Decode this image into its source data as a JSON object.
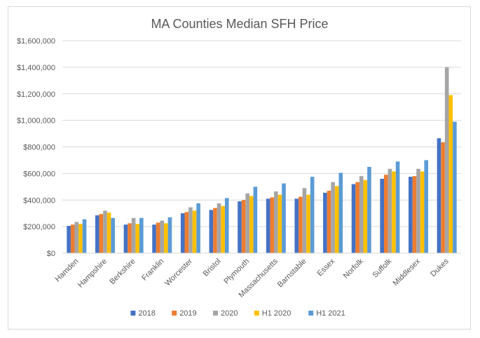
{
  "chart_data": {
    "type": "bar",
    "title": "MA Counties Median SFH Price",
    "xlabel": "",
    "ylabel": "",
    "ylim": [
      0,
      1600000
    ],
    "y_ticks": [
      "$0",
      "$200,000",
      "$400,000",
      "$600,000",
      "$800,000",
      "$1,000,000",
      "$1,200,000",
      "$1,400,000",
      "$1,600,000"
    ],
    "y_tick_values": [
      0,
      200000,
      400000,
      600000,
      800000,
      1000000,
      1200000,
      1400000,
      1600000
    ],
    "grid": true,
    "legend_position": "bottom",
    "categories": [
      "Hamden",
      "Hampshire",
      "Berkshire",
      "Franklin",
      "Worcester",
      "Bristol",
      "Plymouth",
      "Massachusetts",
      "Barnstable",
      "Essex",
      "Norfolk",
      "Suffolk",
      "Middlesex",
      "Dukes"
    ],
    "series": [
      {
        "name": "2018",
        "color": "#4472c4",
        "values": [
          205000,
          285000,
          215000,
          215000,
          300000,
          325000,
          390000,
          410000,
          410000,
          455000,
          520000,
          560000,
          575000,
          865000
        ]
      },
      {
        "name": "2019",
        "color": "#ed7d31",
        "values": [
          215000,
          295000,
          225000,
          230000,
          310000,
          340000,
          400000,
          420000,
          425000,
          470000,
          535000,
          590000,
          580000,
          835000
        ]
      },
      {
        "name": "2020",
        "color": "#a5a5a5",
        "values": [
          235000,
          320000,
          265000,
          245000,
          345000,
          375000,
          450000,
          465000,
          490000,
          535000,
          580000,
          635000,
          635000,
          1400000
        ]
      },
      {
        "name": "H1 2020",
        "color": "#ffc000",
        "values": [
          220000,
          305000,
          220000,
          225000,
          320000,
          355000,
          430000,
          440000,
          440000,
          505000,
          550000,
          615000,
          615000,
          1190000
        ]
      },
      {
        "name": "H1 2021",
        "color": "#5b9bd5",
        "values": [
          255000,
          265000,
          265000,
          270000,
          375000,
          415000,
          500000,
          525000,
          575000,
          605000,
          650000,
          690000,
          700000,
          990000
        ]
      }
    ]
  }
}
